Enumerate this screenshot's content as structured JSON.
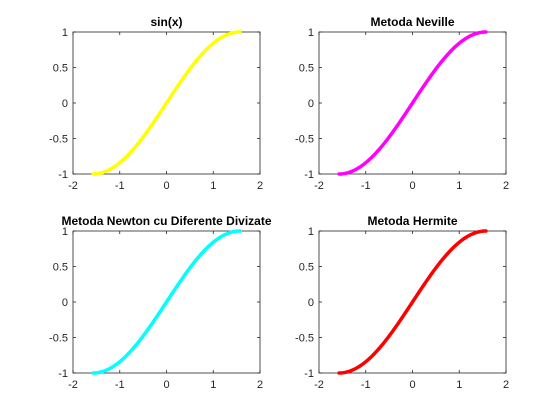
{
  "chart_data": [
    {
      "type": "line",
      "title": "sin(x)",
      "color": "#ffff00",
      "function": "sin",
      "x_range": [
        -1.5708,
        1.5708
      ],
      "xlim": [
        -2,
        2
      ],
      "ylim": [
        -1,
        1
      ],
      "xticks": [
        "-2",
        "-1",
        "0",
        "1",
        "2"
      ],
      "yticks": [
        "-1",
        "-0.5",
        "0",
        "0.5",
        "1"
      ]
    },
    {
      "type": "line",
      "title": "Metoda Neville",
      "color": "#ff00ff",
      "function": "sin",
      "x_range": [
        -1.5708,
        1.5708
      ],
      "xlim": [
        -2,
        2
      ],
      "ylim": [
        -1,
        1
      ],
      "xticks": [
        "-2",
        "-1",
        "0",
        "1",
        "2"
      ],
      "yticks": [
        "-1",
        "-0.5",
        "0",
        "0.5",
        "1"
      ]
    },
    {
      "type": "line",
      "title": "Metoda Newton cu Diferente Divizate",
      "color": "#00ffff",
      "function": "sin",
      "x_range": [
        -1.5708,
        1.5708
      ],
      "xlim": [
        -2,
        2
      ],
      "ylim": [
        -1,
        1
      ],
      "xticks": [
        "-2",
        "-1",
        "0",
        "1",
        "2"
      ],
      "yticks": [
        "-1",
        "-0.5",
        "0",
        "0.5",
        "1"
      ]
    },
    {
      "type": "line",
      "title": "Metoda Hermite",
      "color": "#ff0000",
      "function": "sin",
      "x_range": [
        -1.5708,
        1.5708
      ],
      "xlim": [
        -2,
        2
      ],
      "ylim": [
        -1,
        1
      ],
      "xticks": [
        "-2",
        "-1",
        "0",
        "1",
        "2"
      ],
      "yticks": [
        "-1",
        "-0.5",
        "0",
        "0.5",
        "1"
      ]
    }
  ]
}
